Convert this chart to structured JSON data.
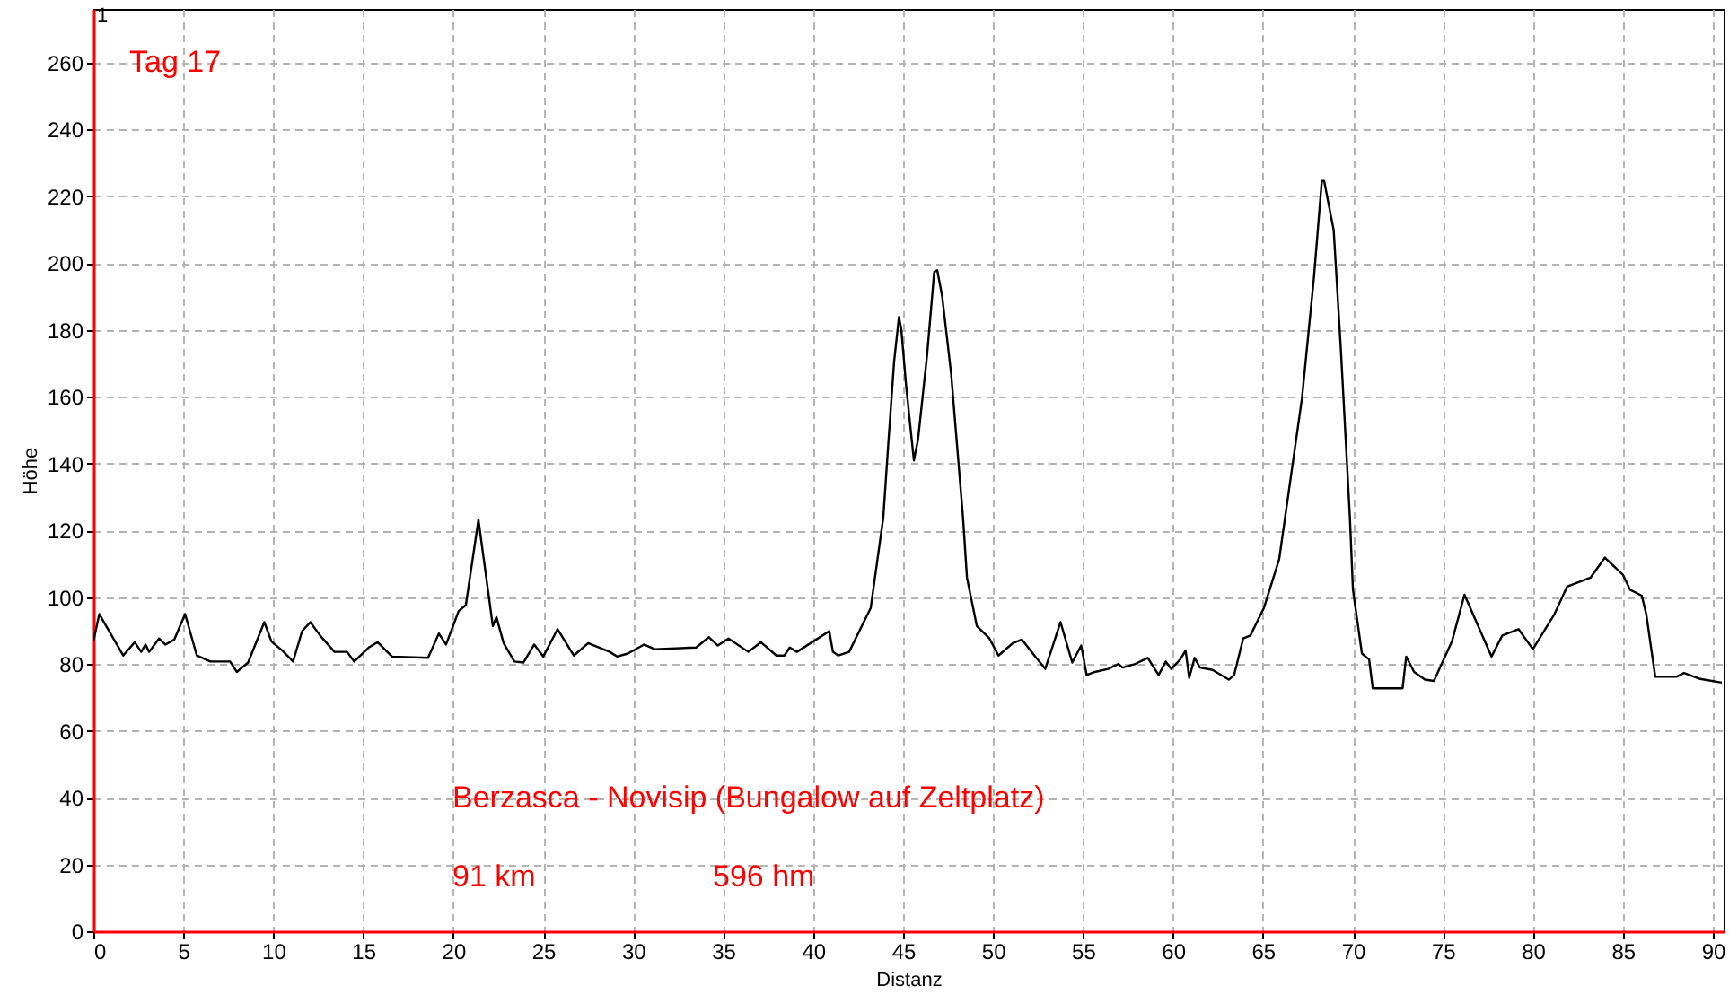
{
  "chart_data": {
    "type": "line",
    "xlabel": "Distanz",
    "ylabel": "Höhe",
    "annotations": [
      "1",
      "Tag 17",
      "Berzasca - Novisip (Bungalow auf Zeltplatz)",
      "91 km",
      "596 hm"
    ],
    "xlim": [
      0,
      90.6
    ],
    "ylim": [
      0,
      276
    ],
    "xticks": [
      0,
      5,
      10,
      15,
      20,
      25,
      30,
      35,
      40,
      45,
      50,
      55,
      60,
      65,
      70,
      75,
      80,
      85,
      90
    ],
    "yticks": [
      0,
      20,
      40,
      60,
      80,
      100,
      120,
      140,
      160,
      180,
      200,
      220,
      240,
      260
    ],
    "grid": true,
    "marker": "none",
    "line_style": "solid",
    "series": [
      {
        "color": "#000000",
        "x": [
          0,
          0.33,
          1.66,
          2.3,
          2.66,
          2.9,
          3.1,
          3.65,
          4.0,
          4.5,
          5.1,
          5.75,
          6.5,
          7.6,
          7.97,
          8.6,
          9.5,
          9.9,
          10.5,
          11.1,
          11.6,
          12.06,
          12.6,
          13.4,
          14.1,
          14.5,
          15.3,
          15.8,
          16.6,
          18.6,
          19.2,
          19.6,
          20.3,
          20.7,
          21.4,
          22.2,
          22.4,
          22.8,
          23.4,
          23.9,
          24.5,
          25.0,
          25.8,
          26.7,
          27.5,
          28.7,
          29.1,
          29.7,
          30.6,
          31.2,
          33.5,
          34.2,
          34.7,
          35.3,
          36.4,
          37.1,
          37.96,
          38.4,
          38.7,
          39.1,
          40.9,
          41.1,
          41.4,
          42.0,
          43.2,
          43.9,
          44.17,
          44.5,
          44.77,
          44.9,
          45.17,
          45.6,
          45.83,
          46.33,
          46.73,
          46.9,
          47.17,
          47.67,
          48.33,
          48.55,
          49.1,
          49.8,
          50.3,
          51.1,
          51.6,
          52.3,
          52.9,
          53.75,
          54.4,
          54.9,
          55.2,
          55.66,
          56.4,
          56.97,
          57.2,
          57.9,
          58.6,
          59.2,
          59.6,
          59.9,
          60.4,
          60.7,
          60.9,
          61.2,
          61.5,
          62.2,
          63.1,
          63.4,
          63.9,
          64.3,
          65.05,
          65.9,
          67.17,
          67.83,
          68.27,
          68.4,
          68.93,
          69.33,
          69.83,
          70.0,
          70.5,
          70.9,
          71.1,
          72.76,
          72.96,
          73.4,
          74.0,
          74.5,
          75.5,
          76.2,
          77.7,
          78.3,
          79.2,
          80.0,
          81.2,
          81.9,
          83.2,
          84.0,
          85.0,
          85.4,
          86.05,
          86.3,
          86.8,
          88.0,
          88.4,
          89.3,
          90.5
        ],
        "values": [
          86.7,
          94.9,
          82.5,
          86.5,
          83.6,
          85.8,
          83.6,
          87.6,
          85.8,
          87.3,
          94.9,
          82.5,
          80.7,
          80.7,
          77.6,
          80.4,
          92.5,
          86.7,
          84,
          80.7,
          89.8,
          92.5,
          88.5,
          83.6,
          83.6,
          80.7,
          84.9,
          86.5,
          82.2,
          81.8,
          89.1,
          85.8,
          95.8,
          97.6,
          123.1,
          91.3,
          94,
          86.2,
          80.7,
          80.4,
          85.8,
          82.2,
          90.4,
          82.5,
          86.2,
          83.6,
          82.2,
          83.1,
          85.8,
          84.4,
          84.9,
          88,
          85.5,
          87.6,
          83.6,
          86.5,
          82.5,
          82.5,
          84.9,
          83.6,
          89.8,
          83.6,
          82.5,
          83.6,
          96.7,
          123.8,
          145.3,
          170.4,
          183.8,
          180.2,
          163.2,
          140.9,
          147.1,
          172.2,
          197.3,
          197.8,
          190.1,
          166.9,
          123.8,
          105.8,
          91.3,
          87.6,
          82.5,
          86.2,
          87.3,
          82.5,
          78.5,
          92.5,
          80.4,
          85.5,
          76.7,
          77.6,
          78.5,
          80,
          78.9,
          80,
          81.8,
          76.7,
          80.7,
          78.5,
          81.3,
          84,
          75.8,
          81.8,
          78.9,
          78.2,
          75.3,
          76.7,
          87.6,
          88.5,
          96.7,
          111.3,
          159.6,
          195.5,
          224.5,
          224.5,
          209.8,
          174,
          123.8,
          102.2,
          83.1,
          81.3,
          72.7,
          72.7,
          82.2,
          77.6,
          75.3,
          74.9,
          86.7,
          100.7,
          82.2,
          88.5,
          90.4,
          84.4,
          94.9,
          103.1,
          105.8,
          111.8,
          106.7,
          102.2,
          100.4,
          94.9,
          76.2,
          76.2,
          77.3,
          75.5,
          74.4
        ]
      }
    ]
  }
}
